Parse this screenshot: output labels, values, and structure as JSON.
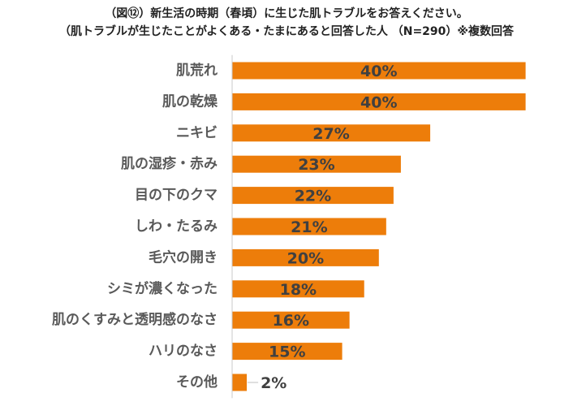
{
  "chart_data": {
    "type": "bar",
    "orientation": "horizontal",
    "title": "（図⑫）新生活の時期（春頃）に生じた肌トラブルをお答えください。",
    "subtitle": "（肌トラブルが生じたことがよくある・たまにあると回答した人 （N=290）※複数回答",
    "categories": [
      "肌荒れ",
      "肌の乾燥",
      "ニキビ",
      "肌の湿疹・赤み",
      "目の下のクマ",
      "しわ・たるみ",
      "毛穴の開き",
      "シミが濃くなった",
      "肌のくすみと透明感のなさ",
      "ハリのなさ",
      "その他"
    ],
    "values": [
      40,
      40,
      27,
      23,
      22,
      21,
      20,
      18,
      16,
      15,
      2
    ],
    "value_labels": [
      "40%",
      "40%",
      "27%",
      "23%",
      "22%",
      "21%",
      "20%",
      "18%",
      "16%",
      "15%",
      "2%"
    ],
    "unit": "%",
    "xlim": [
      0,
      45
    ],
    "grid": false,
    "legend": "none",
    "bar_color": "#ed7d0a",
    "axis_color": "#c8c8c8"
  }
}
